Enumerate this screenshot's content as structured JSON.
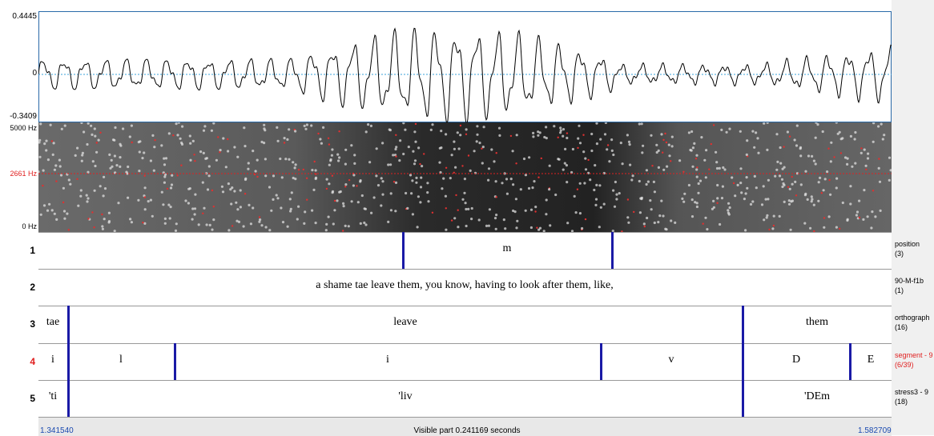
{
  "waveform": {
    "max": "0.4445",
    "zero": "0",
    "min": "-0.3409"
  },
  "spectrogram": {
    "top": "5000 Hz",
    "cursor": "2661 Hz",
    "bottom": "0 Hz"
  },
  "tiers": [
    {
      "number": "1",
      "name": "position",
      "count": "(3)",
      "labels": [
        "m"
      ]
    },
    {
      "number": "2",
      "name": "90-M-f1b",
      "count": "(1)",
      "labels": [
        "a shame tae leave them, you know, having to look after them, like,"
      ]
    },
    {
      "number": "3",
      "name": "orthograph",
      "count": "(16)",
      "labels": [
        "tae",
        "leave",
        "them"
      ]
    },
    {
      "number": "4",
      "name": "segment - 9",
      "count": "(6/39)",
      "labels": [
        "i",
        "l",
        "i",
        "v",
        "D",
        "E"
      ]
    },
    {
      "number": "5",
      "name": "stress3 - 9",
      "count": "(18)",
      "labels": [
        "'ti",
        "'liv",
        "'DEm"
      ]
    }
  ],
  "footer": {
    "start": "1.341540",
    "visible": "Visible part 0.241169 seconds",
    "end": "1.582709"
  }
}
